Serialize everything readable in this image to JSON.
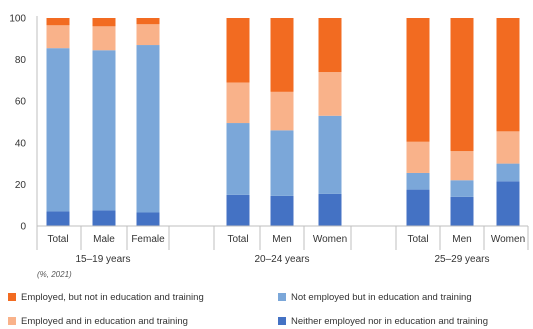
{
  "chart_data": {
    "type": "bar",
    "stacked": true,
    "ylim": [
      0,
      100
    ],
    "yticks": [
      0,
      20,
      40,
      60,
      80,
      100
    ],
    "grid": false,
    "legend_placement": "bottom",
    "note": "(%, 2021)",
    "groups": [
      {
        "label": "15–19 years",
        "categories": [
          "Total",
          "Male",
          "Female"
        ]
      },
      {
        "label": "20–24 years",
        "categories": [
          "Total",
          "Men",
          "Women"
        ]
      },
      {
        "label": "25–29 years",
        "categories": [
          "Total",
          "Men",
          "Women"
        ]
      }
    ],
    "categories": [
      "Total",
      "Male",
      "Female",
      "Total",
      "Men",
      "Women",
      "Total",
      "Men",
      "Women"
    ],
    "series": [
      {
        "name": "Neither employed nor in education and training",
        "color": "#4472c4",
        "values": [
          7,
          7.5,
          6.5,
          15,
          14.5,
          15.5,
          17.5,
          14,
          21.5
        ]
      },
      {
        "name": "Not employed but in education and training",
        "color": "#7ba7d9",
        "values": [
          78.5,
          77,
          80.5,
          34.5,
          31.5,
          37.5,
          8,
          8,
          8.5
        ]
      },
      {
        "name": "Employed and in education and training",
        "color": "#f9b28a",
        "values": [
          11,
          11.5,
          10,
          19.5,
          18.5,
          21,
          15,
          14,
          15.5
        ]
      },
      {
        "name": "Employed, but not in education and training",
        "color": "#f26b21",
        "values": [
          3.5,
          4,
          3,
          31,
          35.5,
          26,
          59.5,
          64,
          54.5
        ]
      }
    ],
    "legend": [
      "Employed, but not in education and training",
      "Not employed but in education and training",
      "Employed and in education and training",
      "Neither employed nor in education and training"
    ]
  }
}
